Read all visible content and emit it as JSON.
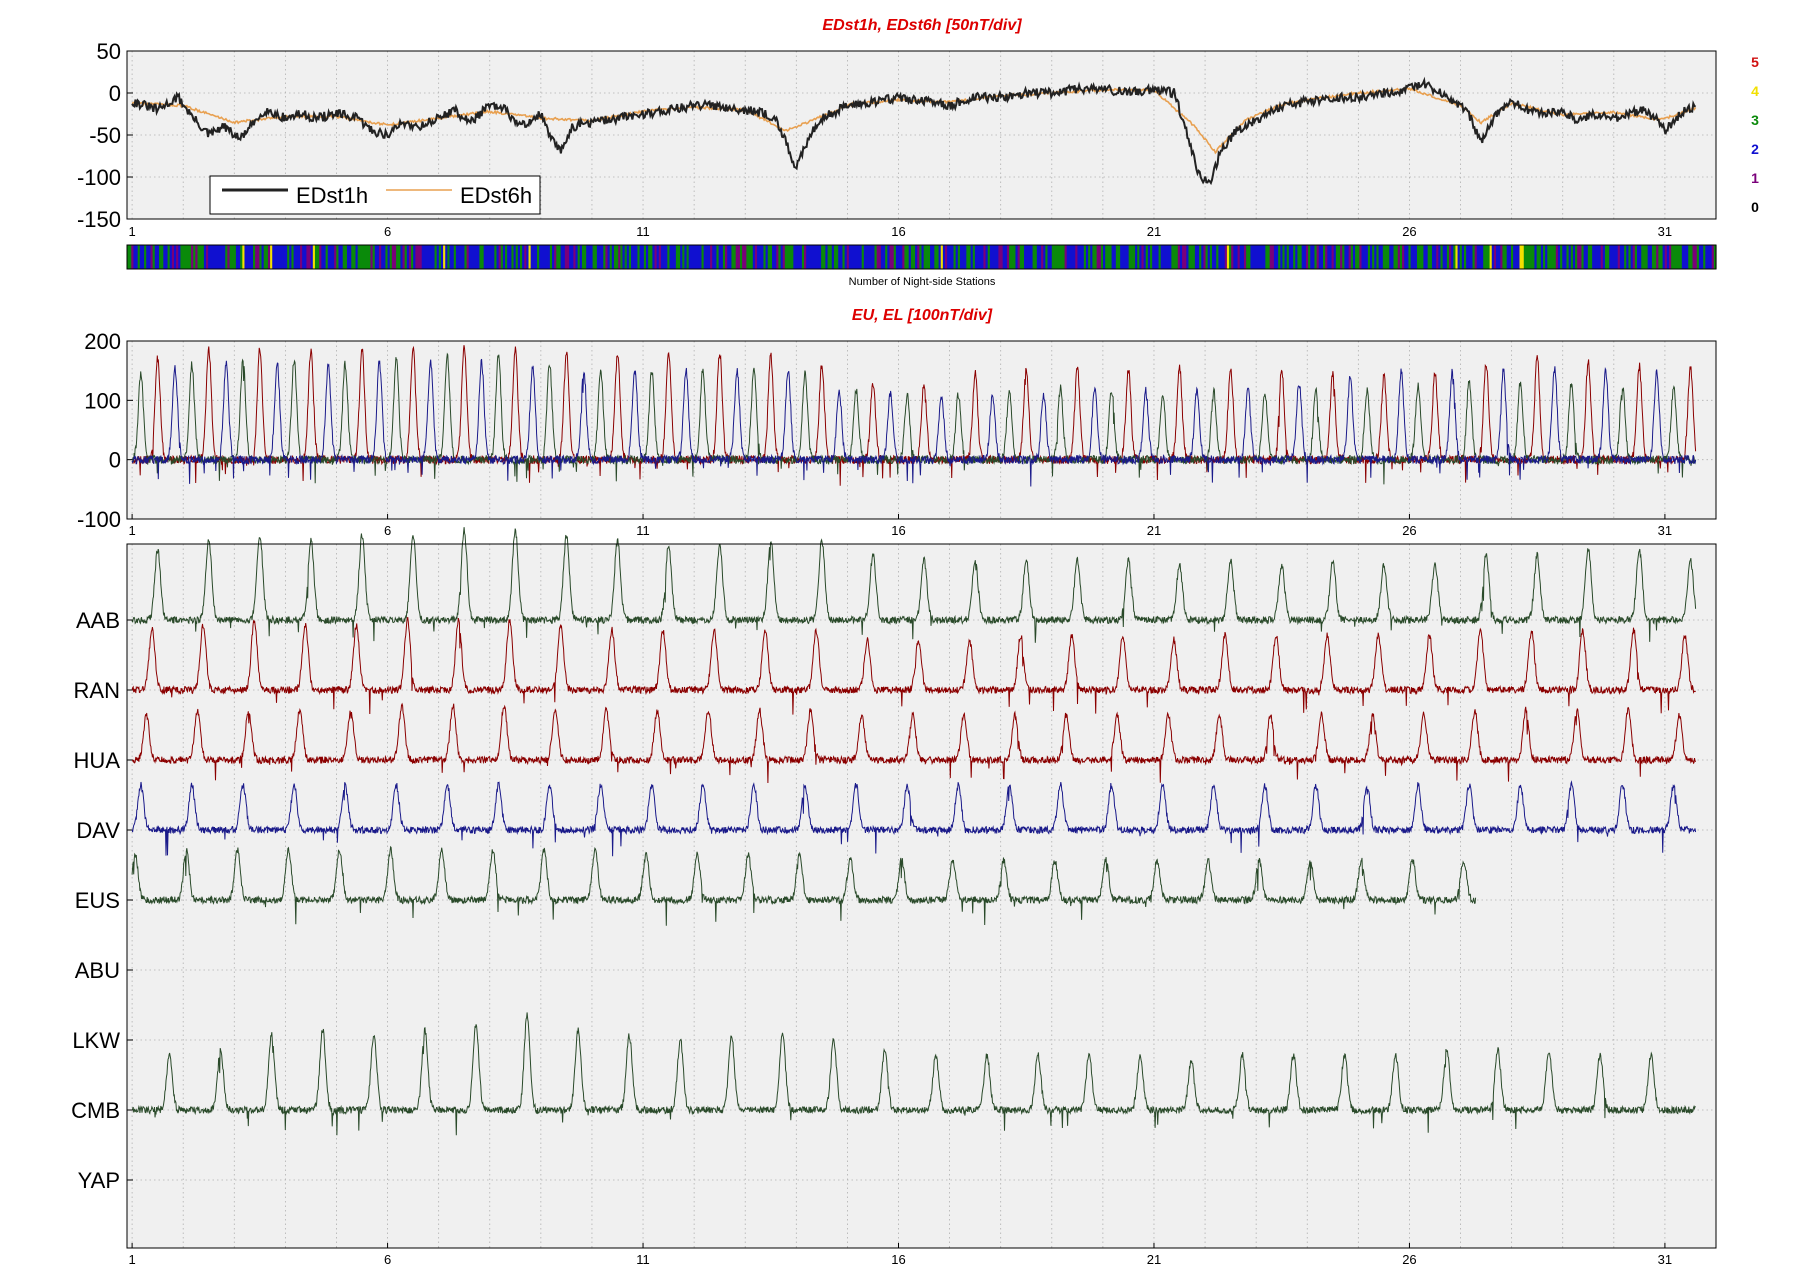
{
  "chart_data": [
    {
      "id": "edst",
      "type": "line",
      "title": "EDst1h, EDst6h [50nT/div]",
      "xlabel": "",
      "ylabel": "",
      "xlim": [
        0.9,
        32.0
      ],
      "ylim": [
        -150,
        50
      ],
      "yticks": [
        -150,
        -100,
        -50,
        0,
        50
      ],
      "xticks": [
        1,
        6,
        11,
        16,
        21,
        26,
        31
      ],
      "grid": true,
      "legend": {
        "position": "bottom-left",
        "entries": [
          "EDst1h",
          "EDst6h"
        ]
      },
      "series": [
        {
          "name": "EDst1h",
          "color": "#222222",
          "x": [
            1,
            1.5,
            1.9,
            2.2,
            2.5,
            2.8,
            3.1,
            3.4,
            3.6,
            4,
            4.3,
            4.6,
            5,
            5.4,
            5.7,
            6,
            6.3,
            6.6,
            7,
            7.3,
            7.6,
            8,
            8.3,
            8.6,
            9,
            9.2,
            9.4,
            9.6,
            10,
            10.5,
            11,
            11.5,
            12,
            12.5,
            13,
            13.4,
            13.6,
            13.8,
            14,
            14.3,
            14.5,
            15,
            15.5,
            16,
            16.5,
            17,
            17.5,
            18,
            18.5,
            19,
            19.5,
            20,
            20.5,
            21,
            21.4,
            21.7,
            21.9,
            22.1,
            22.3,
            22.6,
            22.9,
            23.2,
            23.5,
            24,
            24.5,
            25,
            25.5,
            26,
            26.3,
            26.6,
            27,
            27.2,
            27.4,
            27.7,
            28,
            28.3,
            28.6,
            29,
            29.3,
            29.6,
            30,
            30.3,
            30.6,
            30.9,
            31,
            31.3,
            31.6
          ],
          "values": [
            -10,
            -20,
            -5,
            -30,
            -50,
            -40,
            -55,
            -35,
            -20,
            -30,
            -25,
            -30,
            -25,
            -30,
            -45,
            -50,
            -35,
            -40,
            -30,
            -20,
            -35,
            -15,
            -20,
            -40,
            -25,
            -55,
            -70,
            -40,
            -35,
            -30,
            -25,
            -20,
            -15,
            -15,
            -20,
            -25,
            -30,
            -60,
            -90,
            -45,
            -30,
            -15,
            -10,
            -5,
            -10,
            -15,
            -5,
            -5,
            0,
            0,
            5,
            5,
            0,
            5,
            0,
            -60,
            -100,
            -105,
            -70,
            -45,
            -35,
            -25,
            -15,
            -10,
            -5,
            -5,
            0,
            5,
            10,
            0,
            -15,
            -30,
            -60,
            -25,
            -10,
            -20,
            -25,
            -20,
            -35,
            -25,
            -30,
            -25,
            -20,
            -35,
            -45,
            -25,
            -15
          ]
        },
        {
          "name": "EDst6h",
          "color": "#e8a050",
          "x": [
            1,
            2,
            3,
            4,
            5,
            6,
            7,
            8,
            9,
            10,
            11,
            12,
            13,
            13.8,
            14.5,
            15,
            16,
            17,
            18,
            19,
            20,
            21,
            21.8,
            22.2,
            22.8,
            23.5,
            24,
            25,
            26,
            27,
            27.4,
            28,
            29,
            30,
            30.9,
            31.6
          ],
          "values": [
            -12,
            -15,
            -35,
            -28,
            -28,
            -38,
            -30,
            -22,
            -30,
            -33,
            -22,
            -17,
            -20,
            -45,
            -28,
            -14,
            -8,
            -11,
            -3,
            0,
            4,
            3,
            -40,
            -70,
            -32,
            -14,
            -8,
            0,
            5,
            -15,
            -35,
            -12,
            -26,
            -23,
            -32,
            -18
          ]
        }
      ]
    },
    {
      "id": "nightside",
      "type": "heatmap",
      "xlabel": "Number of Night-side Stations",
      "colorbar_labels": [
        "5",
        "4",
        "3",
        "2",
        "1",
        "0"
      ],
      "colorbar_colors": [
        "#d01010",
        "#f2e000",
        "#0a8a0a",
        "#1010d0",
        "#7a007a",
        "#000000"
      ],
      "segment_count": 744,
      "values_by_day": [
        {
          "day": 1,
          "stations": [
            2,
            2,
            3,
            2,
            2,
            3,
            2,
            1
          ]
        },
        {
          "day": 5,
          "stations": [
            2,
            3,
            2,
            2,
            1,
            3,
            2,
            2
          ]
        },
        {
          "day": 10,
          "stations": [
            2,
            2,
            3,
            2,
            1,
            2,
            3,
            2
          ]
        },
        {
          "day": 15,
          "stations": [
            3,
            2,
            2,
            2,
            1,
            3,
            2,
            2
          ]
        },
        {
          "day": 20,
          "stations": [
            2,
            2,
            3,
            2,
            2,
            2,
            1,
            2
          ]
        },
        {
          "day": 25,
          "stations": [
            2,
            3,
            2,
            1,
            2,
            2,
            3,
            2
          ]
        },
        {
          "day": 30,
          "stations": [
            1,
            2,
            2,
            1,
            2,
            2,
            3,
            2
          ]
        }
      ]
    },
    {
      "id": "eu-el",
      "type": "line",
      "title": "EU, EL   [100nT/div]",
      "xlabel": "",
      "ylabel": "",
      "xlim": [
        0.9,
        32.0
      ],
      "ylim": [
        -100,
        200
      ],
      "yticks": [
        -100,
        0,
        100,
        200
      ],
      "xticks": [
        1,
        6,
        11,
        16,
        21,
        26,
        31
      ],
      "grid": true,
      "daily_peak_phase": 0.5,
      "series": [
        {
          "color": "#8b0000",
          "x": [
            1,
            2,
            3,
            4,
            5,
            6,
            7,
            8,
            9,
            10,
            11,
            12,
            13,
            14,
            15,
            16,
            17,
            18,
            19,
            20,
            21,
            22,
            23,
            24,
            25,
            26,
            27,
            28,
            29,
            30,
            31
          ],
          "values": [
            160,
            190,
            185,
            190,
            180,
            190,
            190,
            190,
            185,
            180,
            175,
            185,
            175,
            180,
            140,
            120,
            140,
            150,
            160,
            150,
            155,
            160,
            150,
            155,
            140,
            140,
            150,
            175,
            170,
            160,
            155
          ]
        },
        {
          "color": "#2a4a2a",
          "x": [
            1,
            2,
            3,
            4,
            5,
            6,
            7,
            8,
            9,
            10,
            11,
            12,
            13,
            14,
            15,
            16,
            17,
            18,
            19,
            20,
            21,
            22,
            23,
            24,
            25,
            26,
            27,
            28,
            29,
            30,
            31
          ],
          "values": [
            140,
            160,
            170,
            170,
            160,
            170,
            175,
            180,
            165,
            150,
            150,
            150,
            155,
            150,
            120,
            110,
            110,
            115,
            120,
            120,
            110,
            115,
            115,
            120,
            115,
            125,
            135,
            130,
            130,
            125,
            120
          ]
        },
        {
          "color": "#1a1a8a",
          "x": [
            1,
            2,
            3,
            4,
            5,
            6,
            7,
            8,
            9,
            10,
            11,
            12,
            13,
            14,
            15,
            16,
            17,
            18,
            19,
            20,
            21,
            22,
            23,
            24,
            25,
            26,
            27,
            28,
            29,
            30,
            31
          ],
          "values": [
            150,
            155,
            165,
            160,
            160,
            165,
            165,
            165,
            155,
            150,
            150,
            150,
            150,
            150,
            110,
            110,
            110,
            110,
            110,
            120,
            115,
            115,
            120,
            130,
            140,
            150,
            155,
            150,
            155,
            150,
            145
          ]
        }
      ]
    },
    {
      "id": "stations",
      "type": "line",
      "xlabel": "",
      "ylabel": "",
      "xlim": [
        0.9,
        32.0
      ],
      "xticks": [
        1,
        6,
        11,
        16,
        21,
        26,
        31
      ],
      "grid": true,
      "stations": [
        {
          "label": "AAB",
          "color": "#2a4a2a",
          "present": true,
          "daily_amplitude": [
            70,
            80,
            85,
            80,
            85,
            85,
            90,
            90,
            85,
            80,
            75,
            75,
            80,
            80,
            65,
            60,
            60,
            60,
            60,
            60,
            55,
            60,
            55,
            60,
            55,
            55,
            65,
            65,
            70,
            70,
            60
          ]
        },
        {
          "label": "RAN",
          "color": "#8b0000",
          "present": true,
          "daily_amplitude": [
            60,
            65,
            70,
            65,
            65,
            70,
            70,
            70,
            65,
            60,
            60,
            60,
            60,
            60,
            50,
            50,
            50,
            55,
            55,
            55,
            50,
            55,
            55,
            55,
            55,
            55,
            60,
            60,
            60,
            60,
            55
          ]
        },
        {
          "label": "HUA",
          "color": "#8b0000",
          "present": true,
          "daily_amplitude": [
            45,
            50,
            50,
            50,
            50,
            55,
            55,
            55,
            50,
            50,
            50,
            50,
            50,
            50,
            45,
            45,
            45,
            45,
            45,
            45,
            45,
            45,
            45,
            45,
            45,
            45,
            50,
            50,
            50,
            50,
            45
          ]
        },
        {
          "label": "DAV",
          "color": "#1a1a8a",
          "present": true,
          "daily_amplitude": [
            45,
            45,
            45,
            45,
            45,
            45,
            45,
            45,
            45,
            45,
            45,
            45,
            45,
            45,
            45,
            45,
            45,
            45,
            45,
            45,
            45,
            45,
            45,
            45,
            45,
            45,
            45,
            45,
            45,
            45,
            45
          ]
        },
        {
          "label": "EUS",
          "color": "#2a4a2a",
          "present": true,
          "end_day": 27.3,
          "daily_amplitude": [
            45,
            50,
            50,
            50,
            50,
            50,
            50,
            50,
            50,
            50,
            45,
            45,
            45,
            45,
            40,
            40,
            40,
            40,
            40,
            40,
            40,
            40,
            40,
            40,
            40,
            40,
            40
          ]
        },
        {
          "label": "ABU",
          "color": "#2a4a2a",
          "present": false,
          "daily_amplitude": []
        },
        {
          "label": "LKW",
          "color": "#2a4a2a",
          "present": false,
          "daily_amplitude": []
        },
        {
          "label": "CMB",
          "color": "#2a4a2a",
          "present": true,
          "daily_amplitude": [
            55,
            60,
            75,
            80,
            75,
            80,
            85,
            95,
            80,
            75,
            70,
            75,
            75,
            70,
            60,
            55,
            55,
            55,
            55,
            55,
            50,
            55,
            55,
            55,
            55,
            60,
            60,
            60,
            55,
            55,
            55
          ]
        },
        {
          "label": "YAP",
          "color": "#2a4a2a",
          "present": false,
          "daily_amplitude": []
        }
      ]
    }
  ]
}
